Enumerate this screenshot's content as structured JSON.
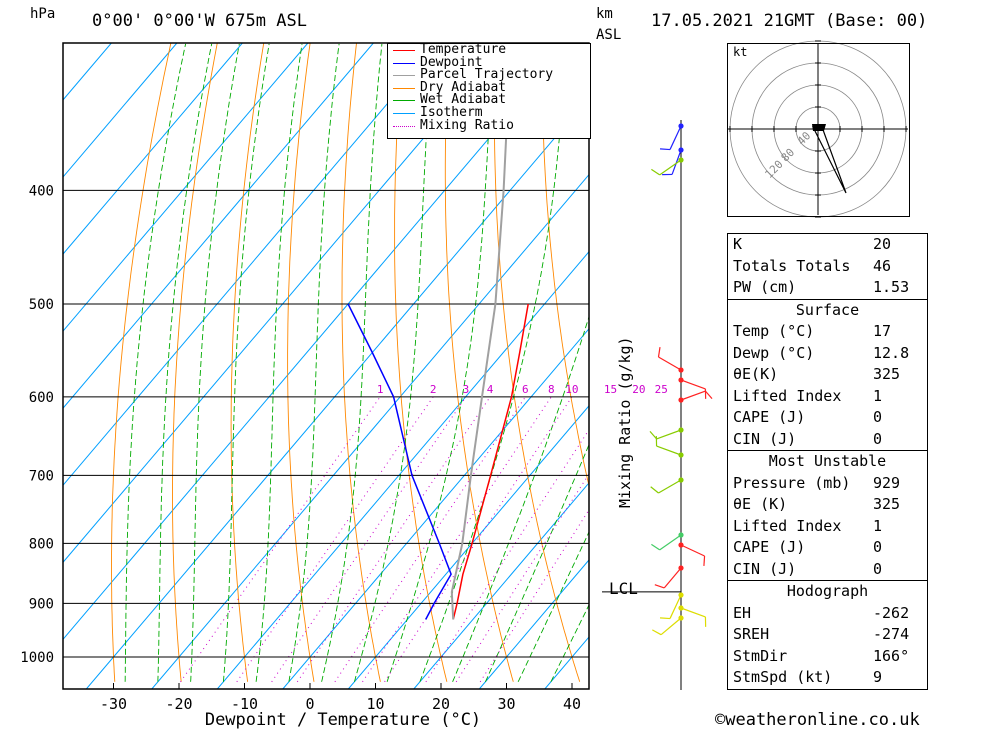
{
  "header": {
    "hpa": "hPa",
    "location": "0°00' 0°00'W 675m ASL",
    "km": "km",
    "asl": "ASL",
    "datetime": "17.05.2021 21GMT (Base: 00)"
  },
  "hodograph": {
    "unit": "kt",
    "ring_labels": [
      "40",
      "80",
      "120"
    ]
  },
  "legend": [
    {
      "label": "Temperature",
      "color": "#ff0000",
      "style": "solid"
    },
    {
      "label": "Dewpoint",
      "color": "#0000ff",
      "style": "solid"
    },
    {
      "label": "Parcel Trajectory",
      "color": "#a0a0a0",
      "style": "solid"
    },
    {
      "label": "Dry Adiabat",
      "color": "#ff8800",
      "style": "solid"
    },
    {
      "label": "Wet Adiabat",
      "color": "#00aa00",
      "style": "solid"
    },
    {
      "label": "Isotherm",
      "color": "#00a0ff",
      "style": "solid"
    },
    {
      "label": "Mixing Ratio",
      "color": "#cc00cc",
      "style": "dotted"
    }
  ],
  "side_label": "Mixing Ratio (g/kg)",
  "lcl_label": "LCL",
  "copyright": "©weatheronline.co.uk",
  "indices": {
    "top": [
      {
        "k": "K",
        "v": "20"
      },
      {
        "k": "Totals Totals",
        "v": "46"
      },
      {
        "k": "PW (cm)",
        "v": "1.53"
      }
    ],
    "surface_title": "Surface",
    "surface": [
      {
        "k": "Temp (°C)",
        "v": "17"
      },
      {
        "k": "Dewp (°C)",
        "v": "12.8"
      },
      {
        "k": "θE(K)",
        "v": "325"
      },
      {
        "k": "Lifted Index",
        "v": "1"
      },
      {
        "k": "CAPE (J)",
        "v": "0"
      },
      {
        "k": "CIN (J)",
        "v": "0"
      }
    ],
    "mu_title": "Most Unstable",
    "mu": [
      {
        "k": "Pressure (mb)",
        "v": "929"
      },
      {
        "k": "θE (K)",
        "v": "325"
      },
      {
        "k": "Lifted Index",
        "v": "1"
      },
      {
        "k": "CAPE (J)",
        "v": "0"
      },
      {
        "k": "CIN (J)",
        "v": "0"
      }
    ],
    "hodo_title": "Hodograph",
    "hodo": [
      {
        "k": "EH",
        "v": "-262"
      },
      {
        "k": "SREH",
        "v": "-274"
      },
      {
        "k": "StmDir",
        "v": "166°"
      },
      {
        "k": "StmSpd (kt)",
        "v": "9"
      }
    ]
  },
  "chart_data": {
    "type": "line",
    "xlabel": "Dewpoint / Temperature (°C)",
    "ylabel": "hPa",
    "xlim": [
      -38,
      43
    ],
    "ylim": [
      1050,
      300
    ],
    "x_ticks": [
      -30,
      -20,
      -10,
      0,
      10,
      20,
      30,
      40
    ],
    "pressure_levels": [
      400,
      500,
      600,
      700,
      800,
      900,
      1000
    ],
    "mixing_ratio_labels": [
      1,
      2,
      3,
      4,
      6,
      8,
      10,
      15,
      20,
      25
    ],
    "lcl_pressure": 880,
    "series": [
      {
        "name": "Temperature",
        "color": "#ff0000",
        "points": [
          [
            929,
            17.0
          ],
          [
            900,
            15.5
          ],
          [
            850,
            12.6
          ],
          [
            800,
            10.0
          ],
          [
            700,
            4.0
          ],
          [
            600,
            -3.0
          ],
          [
            550,
            -7.5
          ],
          [
            500,
            -12.5
          ]
        ]
      },
      {
        "name": "Dewpoint",
        "color": "#0000ff",
        "points": [
          [
            929,
            12.8
          ],
          [
            900,
            12.0
          ],
          [
            850,
            10.8
          ],
          [
            800,
            5.0
          ],
          [
            700,
            -8.0
          ],
          [
            600,
            -21.0
          ],
          [
            550,
            -30.0
          ],
          [
            500,
            -40.0
          ]
        ]
      },
      {
        "name": "Parcel Trajectory",
        "color": "#a0a0a0",
        "points": [
          [
            929,
            17.0
          ],
          [
            880,
            13.2
          ],
          [
            850,
            11.5
          ],
          [
            800,
            8.5
          ],
          [
            700,
            1.0
          ],
          [
            600,
            -7.5
          ],
          [
            500,
            -17.5
          ],
          [
            400,
            -31.0
          ],
          [
            330,
            -43.0
          ]
        ]
      }
    ]
  }
}
